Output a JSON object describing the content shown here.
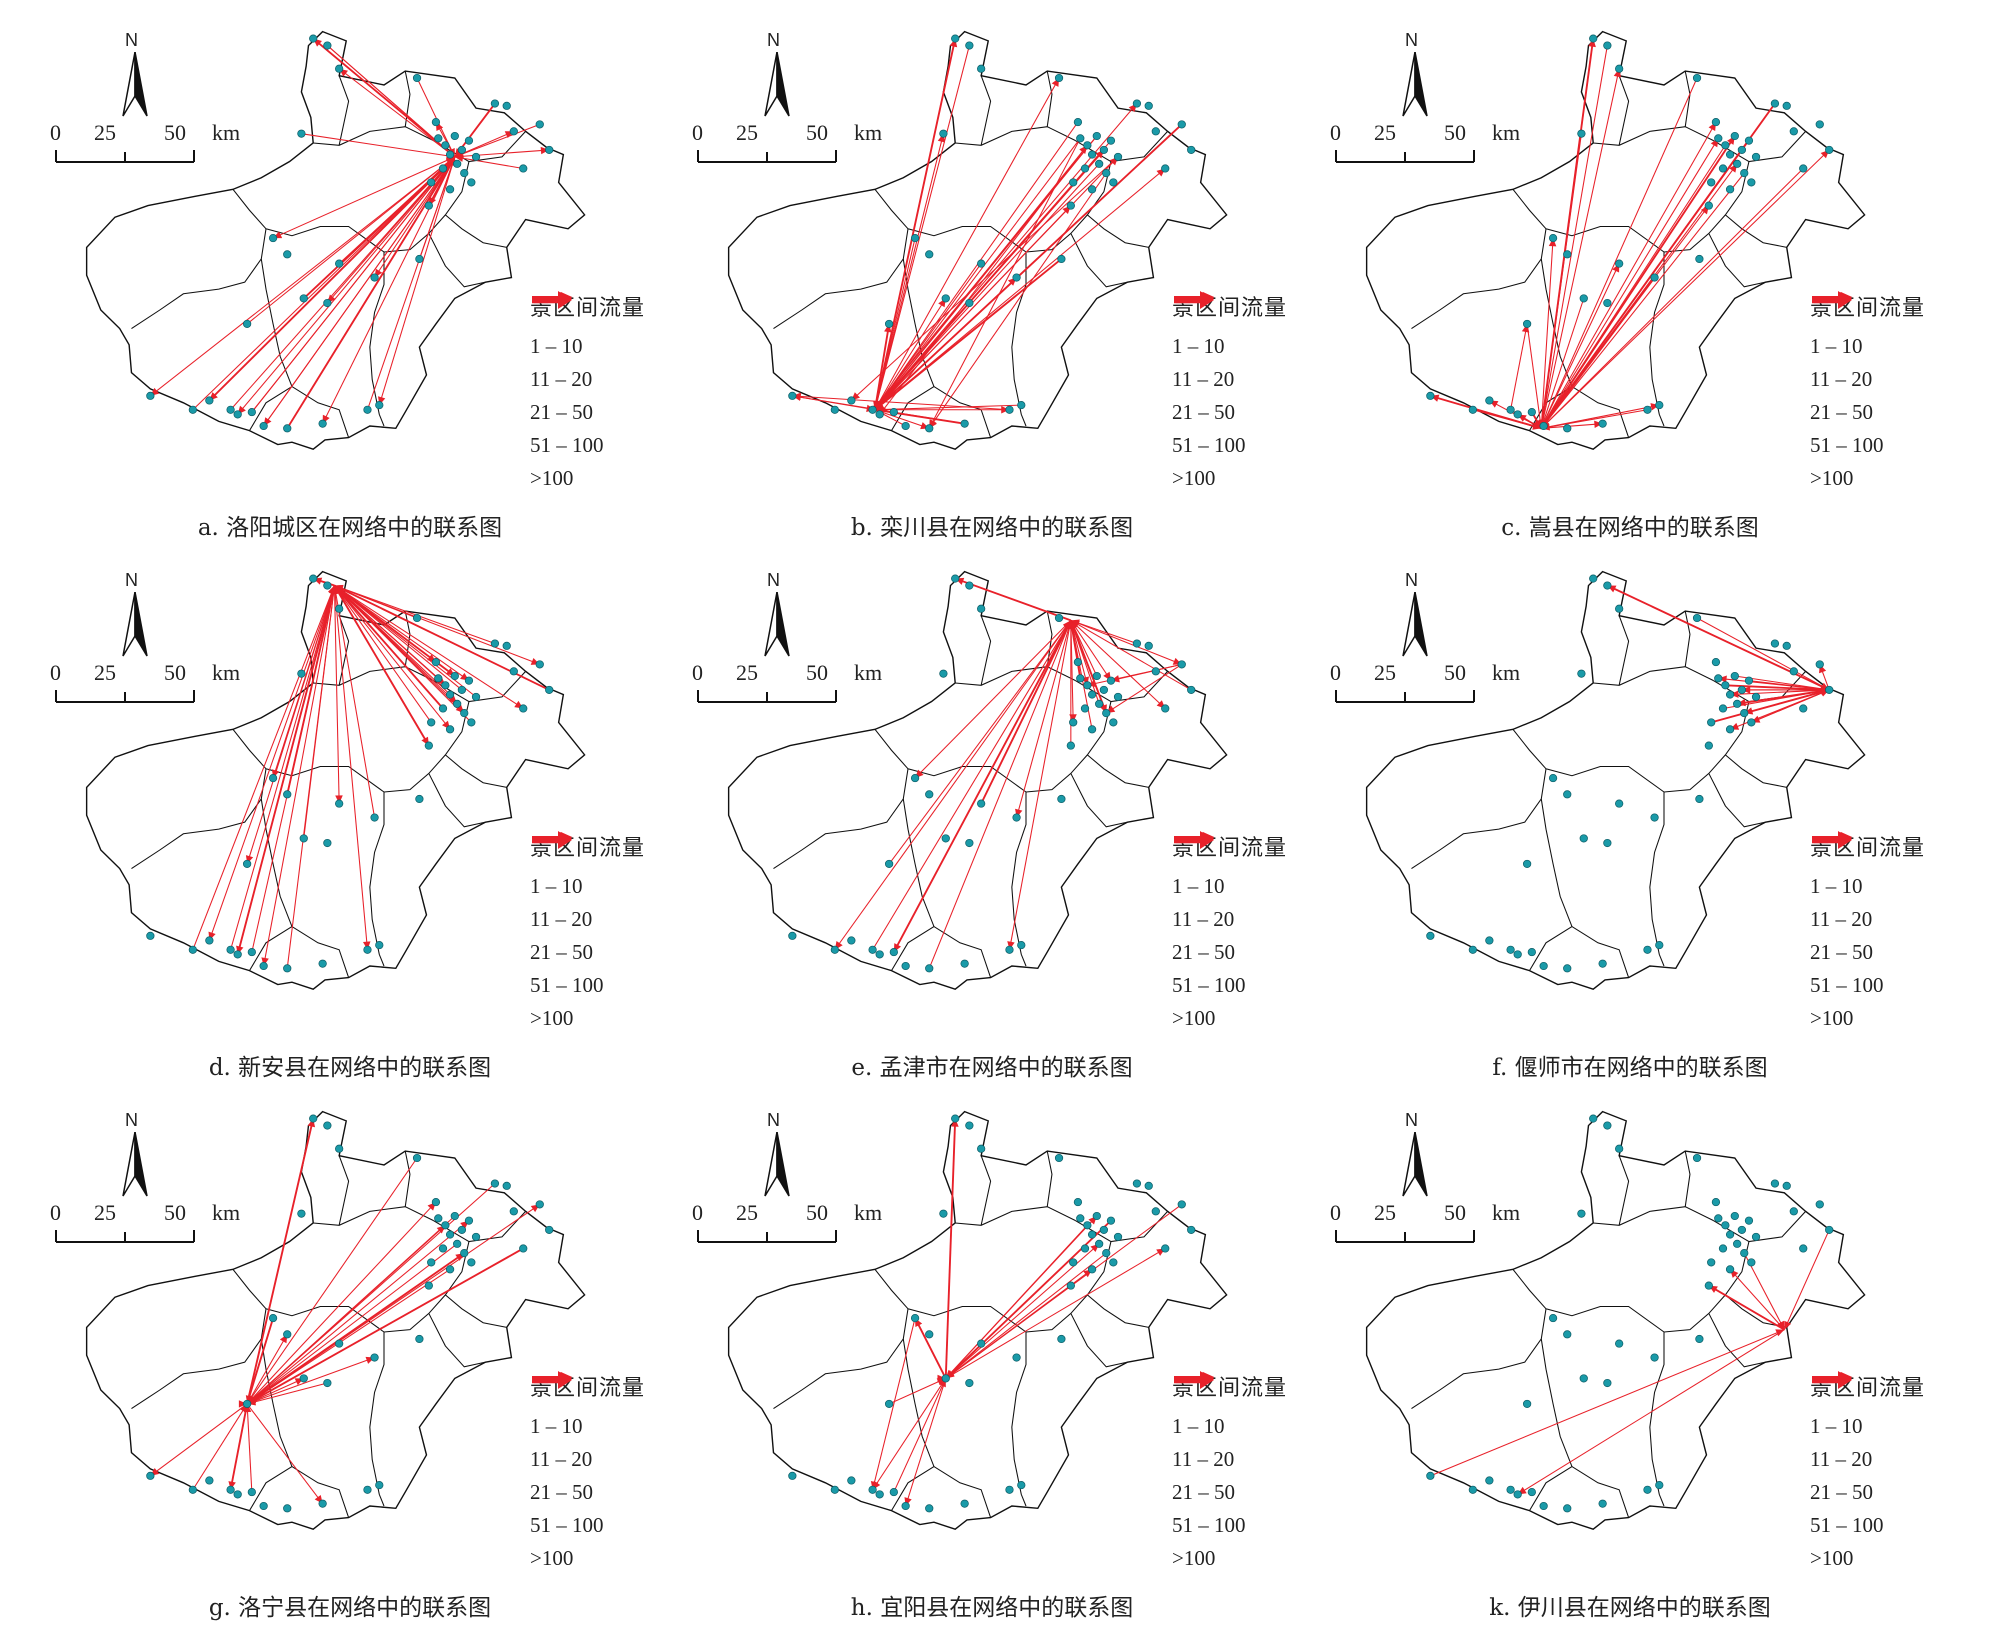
{
  "north_label": "N",
  "scale": {
    "ticks": [
      "0",
      "25",
      "50"
    ],
    "unit": "km"
  },
  "legend": {
    "title": "景区间流量",
    "classes": [
      "1 – 10",
      "11 – 20",
      "21 – 50",
      "51 – 100",
      ">100"
    ]
  },
  "colors": {
    "flow": "#e8212a",
    "node": "#1a9aa8",
    "boundary": "#111111"
  },
  "panels": [
    {
      "caption": "a. 洛阳城区在网络中的联系图"
    },
    {
      "caption": "b. 栾川县在网络中的联系图"
    },
    {
      "caption": "c. 嵩县在网络中的联系图"
    },
    {
      "caption": "d. 新安县在网络中的联系图"
    },
    {
      "caption": "e. 孟津市在网络中的联系图"
    },
    {
      "caption": "f. 偃师市在网络中的联系图"
    },
    {
      "caption": "g. 洛宁县在网络中的联系图"
    },
    {
      "caption": "h. 宜阳县在网络中的联系图"
    },
    {
      "caption": "k. 伊川县在网络中的联系图"
    }
  ]
}
